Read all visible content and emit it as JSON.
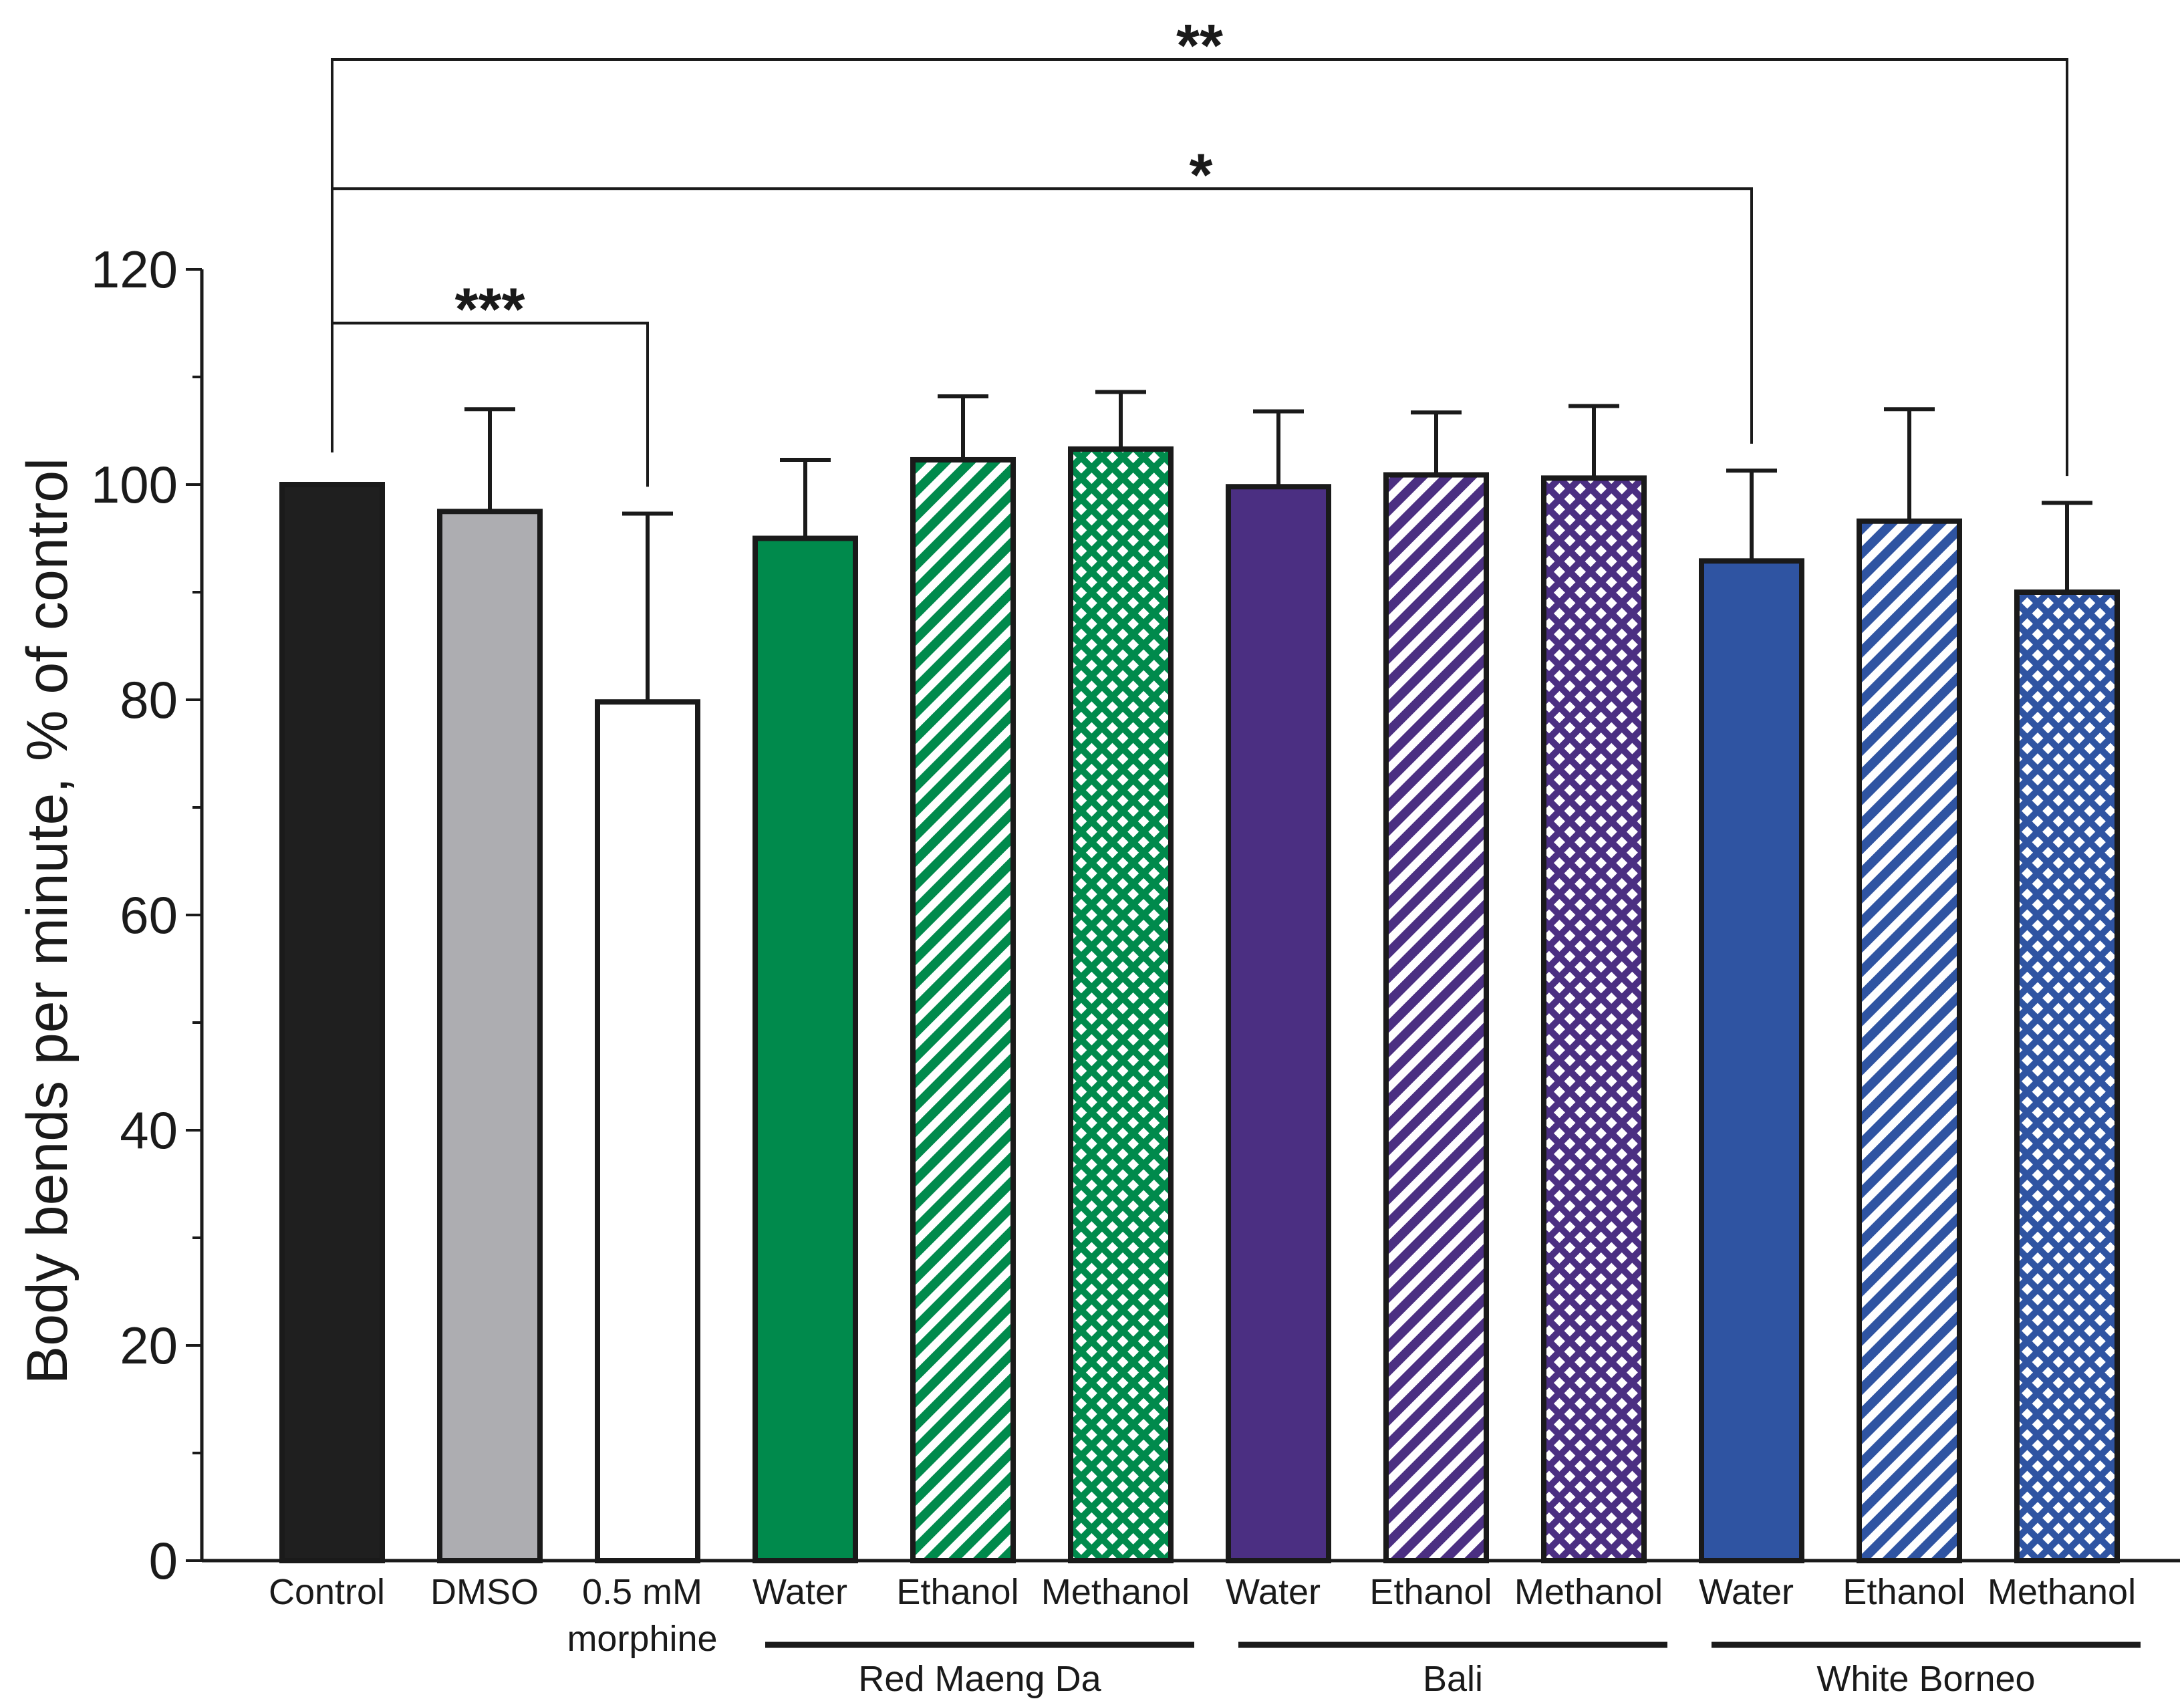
{
  "chart_data": {
    "type": "bar",
    "title": "",
    "xlabel": "",
    "ylabel": "Body bends per minute, % of control",
    "ylim": [
      0,
      120
    ],
    "yticks": [
      0,
      20,
      40,
      60,
      80,
      100,
      120
    ],
    "bars": [
      {
        "label": "Control",
        "value": 100,
        "error": 0,
        "color": "#1f1f1f",
        "pattern": "solid"
      },
      {
        "label": "DMSO",
        "value": 97.5,
        "error": 9.5,
        "color": "#adadb1",
        "pattern": "solid"
      },
      {
        "label": "0.5 mM\nmorphine",
        "value": 79.8,
        "error": 17.5,
        "color": "#ffffff",
        "pattern": "solid"
      },
      {
        "label": "Water",
        "value": 95,
        "error": 7.3,
        "color": "#008a4c",
        "pattern": "solid"
      },
      {
        "label": "Ethanol",
        "value": 102.3,
        "error": 5.9,
        "color": "#008a4c",
        "pattern": "stripes"
      },
      {
        "label": "Methanol",
        "value": 103.3,
        "error": 5.3,
        "color": "#008a4c",
        "pattern": "checks"
      },
      {
        "label": "Water",
        "value": 99.8,
        "error": 7.0,
        "color": "#4b2f82",
        "pattern": "solid"
      },
      {
        "label": "Ethanol",
        "value": 100.9,
        "error": 5.8,
        "color": "#4b2f82",
        "pattern": "stripes"
      },
      {
        "label": "Methanol",
        "value": 100.6,
        "error": 6.7,
        "color": "#4b2f82",
        "pattern": "checks"
      },
      {
        "label": "Water",
        "value": 92.9,
        "error": 8.4,
        "color": "#2f54a2",
        "pattern": "solid"
      },
      {
        "label": "Ethanol",
        "value": 96.6,
        "error": 10.4,
        "color": "#2f54a2",
        "pattern": "stripes"
      },
      {
        "label": "Methanol",
        "value": 90,
        "error": 8.3,
        "color": "#2f54a2",
        "pattern": "checks"
      }
    ],
    "groups": [
      {
        "label": "Red Maeng Da",
        "first": 3,
        "last": 5
      },
      {
        "label": "Bali",
        "first": 6,
        "last": 8
      },
      {
        "label": "White Borneo",
        "first": 9,
        "last": 11
      }
    ],
    "significance": [
      {
        "from": 0,
        "to": 2,
        "label": "***",
        "level": 115
      },
      {
        "from": 0,
        "to": 9,
        "label": "*",
        "level": 127.5
      },
      {
        "from": 0,
        "to": 11,
        "label": "**",
        "level": 139.5
      }
    ]
  }
}
